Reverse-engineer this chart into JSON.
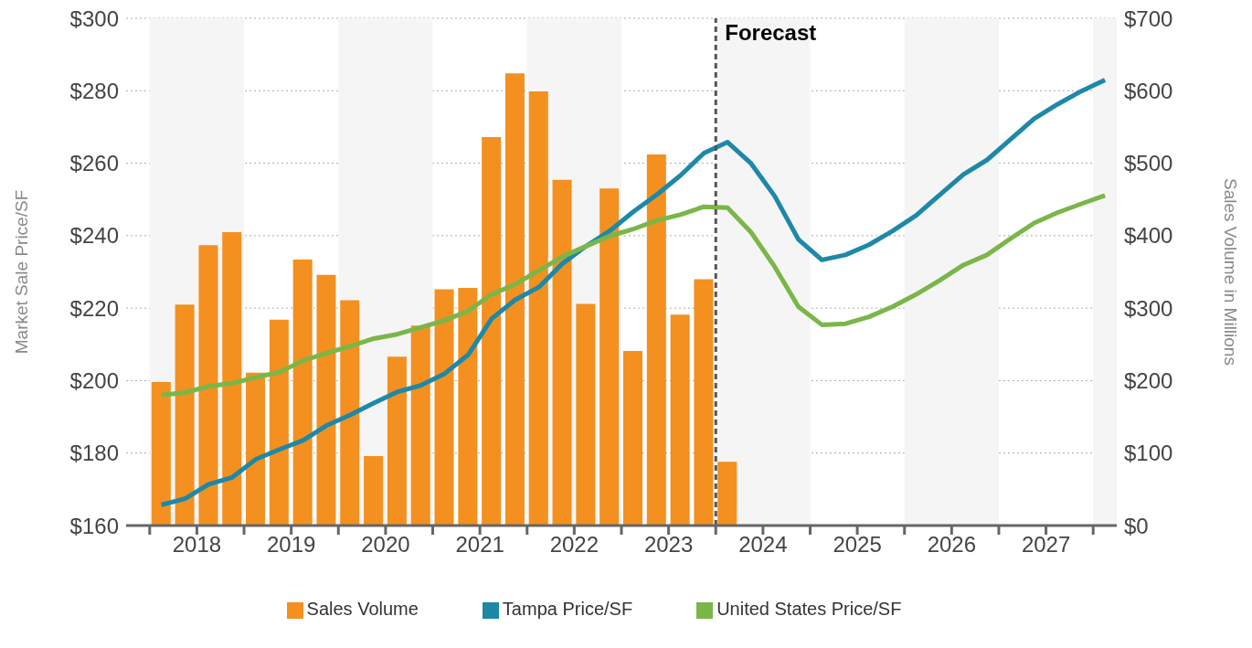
{
  "chart_data": {
    "type": "bar",
    "ylabel": "Market Sale Price/SF",
    "y2label": "Sales Volume in Millions",
    "x": [
      2018.125,
      2018.375,
      2018.625,
      2018.875,
      2019.125,
      2019.375,
      2019.625,
      2019.875,
      2020.125,
      2020.375,
      2020.625,
      2020.875,
      2021.125,
      2021.375,
      2021.625,
      2021.875,
      2022.125,
      2022.375,
      2022.625,
      2022.875,
      2023.125,
      2023.375,
      2023.625,
      2023.875,
      2024.125,
      2024.375,
      2024.625,
      2024.875,
      2025.125,
      2025.375,
      2025.625,
      2025.875,
      2026.125,
      2026.375,
      2026.625,
      2026.875,
      2027.125,
      2027.375,
      2027.625,
      2027.875,
      2028.125
    ],
    "series": [
      {
        "name": "Sales Volume",
        "axis": "y2",
        "color": "#f39020",
        "values": [
          198,
          305,
          387,
          405,
          211,
          284,
          367,
          346,
          311,
          96,
          233,
          276,
          326,
          328,
          536,
          624,
          599,
          477,
          306,
          465,
          241,
          512,
          291,
          340,
          88,
          null,
          null,
          null,
          null,
          null,
          null,
          null,
          null,
          null,
          null,
          null,
          null,
          null,
          null,
          null,
          null
        ]
      },
      {
        "name": "Tampa Price/SF",
        "type": "line",
        "color": "#1e88a8",
        "values": [
          165.7,
          167.4,
          171.4,
          173.3,
          178.3,
          181.0,
          183.5,
          187.6,
          190.5,
          193.8,
          196.9,
          198.7,
          201.9,
          207.1,
          217.1,
          222.3,
          225.8,
          232.3,
          237.1,
          241.3,
          246.6,
          251.3,
          256.6,
          262.8,
          265.8,
          259.9,
          250.9,
          239.0,
          233.3,
          234.7,
          237.5,
          241.3,
          245.6,
          251.3,
          256.9,
          260.9,
          266.6,
          272.3,
          276.3,
          279.9,
          283.0
        ]
      },
      {
        "name": "United States Price/SF",
        "type": "line",
        "color": "#7ab648",
        "values": [
          196.0,
          196.7,
          198.4,
          199.3,
          200.9,
          202.3,
          205.5,
          207.6,
          209.5,
          211.6,
          212.8,
          214.7,
          216.6,
          219.2,
          223.8,
          226.6,
          230.4,
          234.2,
          237.1,
          239.9,
          241.8,
          244.2,
          245.8,
          248.0,
          247.7,
          240.9,
          231.4,
          220.4,
          215.4,
          215.7,
          217.6,
          220.4,
          223.8,
          227.7,
          231.9,
          234.7,
          239.2,
          243.5,
          246.4,
          248.8,
          251.1
        ]
      }
    ],
    "xlim": [
      2017.75,
      2028.25
    ],
    "xticks": [
      {
        "value": 2018,
        "label": null
      },
      {
        "value": 2018.5,
        "label": "2018"
      },
      {
        "value": 2019,
        "label": null
      },
      {
        "value": 2019.5,
        "label": "2019"
      },
      {
        "value": 2020,
        "label": null
      },
      {
        "value": 2020.5,
        "label": "2020"
      },
      {
        "value": 2021,
        "label": null
      },
      {
        "value": 2021.5,
        "label": "2021"
      },
      {
        "value": 2022,
        "label": null
      },
      {
        "value": 2022.5,
        "label": "2022"
      },
      {
        "value": 2023,
        "label": null
      },
      {
        "value": 2023.5,
        "label": "2023"
      },
      {
        "value": 2024,
        "label": null
      },
      {
        "value": 2024.5,
        "label": "2024"
      },
      {
        "value": 2025,
        "label": null
      },
      {
        "value": 2025.5,
        "label": "2025"
      },
      {
        "value": 2026,
        "label": null
      },
      {
        "value": 2026.5,
        "label": "2026"
      },
      {
        "value": 2027,
        "label": null
      },
      {
        "value": 2027.5,
        "label": "2027"
      },
      {
        "value": 2028,
        "label": null
      }
    ],
    "ylim": [
      160,
      300
    ],
    "yticks": [
      {
        "value": 160,
        "label": "$160"
      },
      {
        "value": 180,
        "label": "$180"
      },
      {
        "value": 200,
        "label": "$200"
      },
      {
        "value": 220,
        "label": "$220"
      },
      {
        "value": 240,
        "label": "$240"
      },
      {
        "value": 260,
        "label": "$260"
      },
      {
        "value": 280,
        "label": "$280"
      },
      {
        "value": 300,
        "label": "$300"
      }
    ],
    "y2lim": [
      0,
      700
    ],
    "y2ticks": [
      {
        "value": 0,
        "label": "$0"
      },
      {
        "value": 100,
        "label": "$100"
      },
      {
        "value": 200,
        "label": "$200"
      },
      {
        "value": 300,
        "label": "$300"
      },
      {
        "value": 400,
        "label": "$400"
      },
      {
        "value": 500,
        "label": "$500"
      },
      {
        "value": 600,
        "label": "$600"
      },
      {
        "value": 700,
        "label": "$700"
      }
    ],
    "ref_lines": [
      {
        "axis": "x",
        "value": 2024,
        "label": "Forecast",
        "line_style": "dashed",
        "color": "#555555"
      }
    ],
    "bands": [
      {
        "axis": "x",
        "from": 2018,
        "to": 2019,
        "color": "#f5f5f5"
      },
      {
        "axis": "x",
        "from": 2020,
        "to": 2021,
        "color": "#f5f5f5"
      },
      {
        "axis": "x",
        "from": 2022,
        "to": 2023,
        "color": "#f5f5f5"
      },
      {
        "axis": "x",
        "from": 2024,
        "to": 2025,
        "color": "#f5f5f5"
      },
      {
        "axis": "x",
        "from": 2026,
        "to": 2027,
        "color": "#f5f5f5"
      },
      {
        "axis": "x",
        "from": 2028,
        "to": 2028.25,
        "color": "#f5f5f5"
      }
    ],
    "grid": "y",
    "legend": "bottom"
  }
}
